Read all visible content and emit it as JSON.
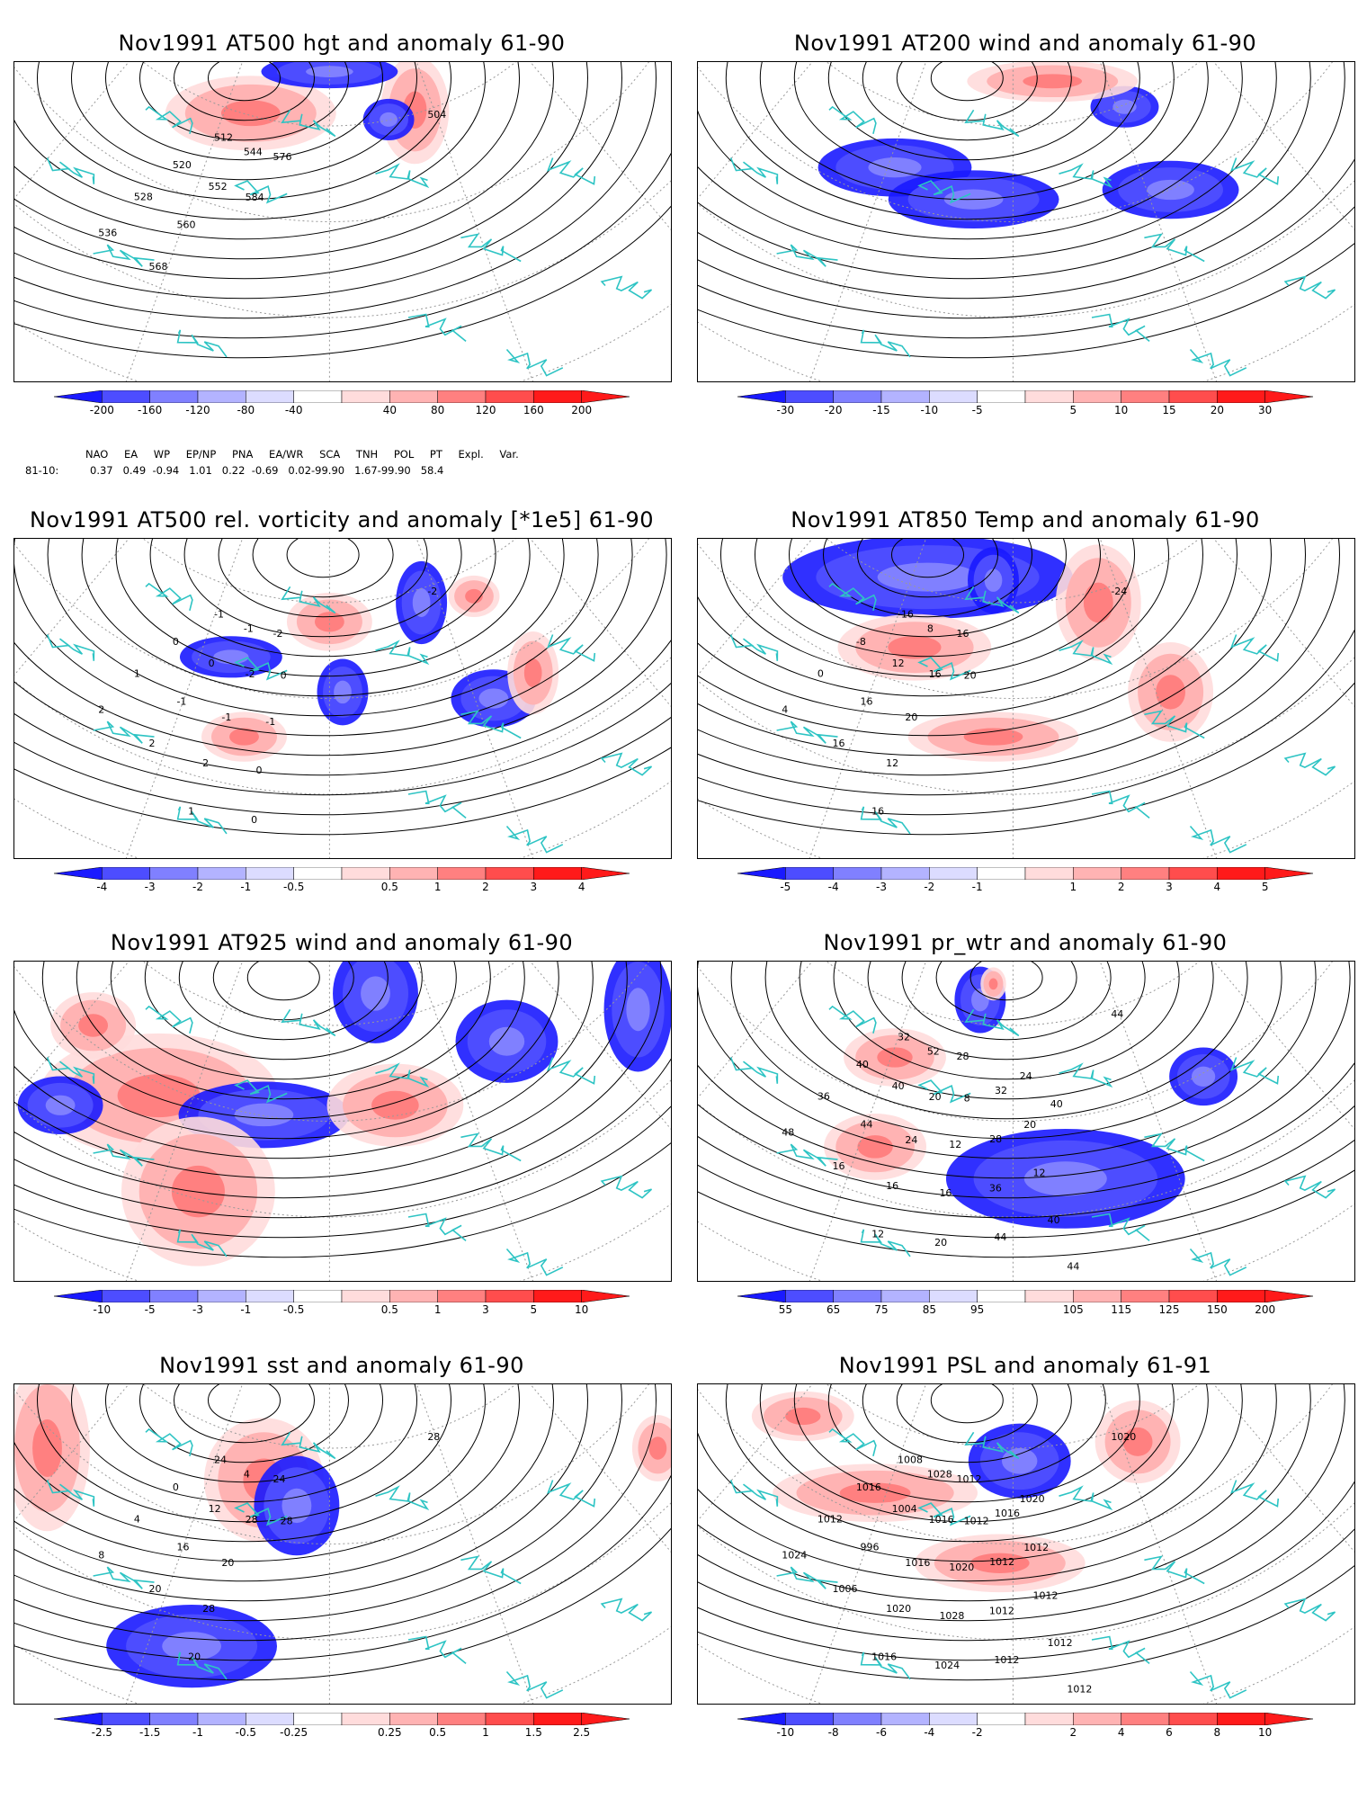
{
  "colors": {
    "coast": "#2ec4c4",
    "contour": "#000000",
    "grid": "#999999",
    "anom_neg": [
      "#1a1aff",
      "#4d4dff",
      "#8080ff",
      "#b3b3ff",
      "#dcdcff"
    ],
    "anom_pos": [
      "#ffdcdc",
      "#ffb3b3",
      "#ff8080",
      "#ff4d4d",
      "#ff1a1a"
    ]
  },
  "panels": [
    {
      "id": "p1",
      "title": "Nov1991 AT500 hgt and anomaly 61-90",
      "colorbar": [
        "-200",
        "-160",
        "-120",
        "-80",
        "-40",
        "40",
        "80",
        "120",
        "160",
        "200"
      ],
      "contour_labels": [
        "504",
        "512",
        "520",
        "528",
        "536",
        "544",
        "552",
        "560",
        "568",
        "576",
        "584"
      ],
      "blobs": [
        [
          "r",
          0.36,
          0.16,
          0.1,
          0.09
        ],
        [
          "r",
          0.61,
          0.15,
          0.04,
          0.13
        ],
        [
          "b",
          0.57,
          0.18,
          0.03,
          0.05
        ],
        [
          "b",
          0.48,
          0.03,
          0.08,
          0.04
        ]
      ]
    },
    {
      "id": "p2",
      "title": "Nov1991 AT200 wind and anomaly 61-90",
      "colorbar": [
        "-30",
        "-20",
        "-15",
        "-10",
        "-5",
        "5",
        "10",
        "15",
        "20",
        "30"
      ],
      "contour_labels": [],
      "blobs": [
        [
          "b",
          0.3,
          0.33,
          0.09,
          0.07
        ],
        [
          "b",
          0.42,
          0.43,
          0.1,
          0.07
        ],
        [
          "b",
          0.72,
          0.4,
          0.08,
          0.07
        ],
        [
          "b",
          0.65,
          0.14,
          0.04,
          0.05
        ],
        [
          "r",
          0.54,
          0.06,
          0.1,
          0.05
        ]
      ]
    },
    {
      "id": "p3",
      "title": "Nov1991 AT500 rel. vorticity and anomaly [*1e5] 61-90",
      "colorbar": [
        "-4",
        "-3",
        "-2",
        "-1",
        "-0.5",
        "0.5",
        "1",
        "2",
        "3",
        "4"
      ],
      "contour_labels": [
        "-2",
        "-1",
        "0",
        "1",
        "2",
        "-1",
        "0",
        "-1",
        "2",
        "-2",
        "-2",
        "-1",
        "2",
        "1",
        "0",
        "-1",
        "0",
        "0"
      ],
      "blobs": [
        [
          "b",
          0.33,
          0.37,
          0.06,
          0.05
        ],
        [
          "r",
          0.48,
          0.26,
          0.05,
          0.07
        ],
        [
          "b",
          0.62,
          0.2,
          0.03,
          0.1
        ],
        [
          "r",
          0.7,
          0.18,
          0.03,
          0.05
        ],
        [
          "b",
          0.73,
          0.5,
          0.05,
          0.07
        ],
        [
          "r",
          0.35,
          0.62,
          0.05,
          0.06
        ],
        [
          "b",
          0.5,
          0.48,
          0.03,
          0.08
        ],
        [
          "r",
          0.79,
          0.42,
          0.03,
          0.1
        ]
      ]
    },
    {
      "id": "p4",
      "title": "Nov1991 AT850 Temp and anomaly 61-90",
      "colorbar": [
        "-5",
        "-4",
        "-3",
        "-2",
        "-1",
        "1",
        "2",
        "3",
        "4",
        "5"
      ],
      "contour_labels": [
        "-24",
        "-16",
        "-8",
        "0",
        "4",
        "8",
        "12",
        "16",
        "16",
        "16",
        "16",
        "20",
        "12",
        "16",
        "20"
      ],
      "blobs": [
        [
          "b",
          0.35,
          0.12,
          0.17,
          0.1
        ],
        [
          "r",
          0.33,
          0.34,
          0.09,
          0.08
        ],
        [
          "r",
          0.61,
          0.2,
          0.05,
          0.14
        ],
        [
          "r",
          0.72,
          0.48,
          0.05,
          0.12
        ],
        [
          "r",
          0.45,
          0.62,
          0.1,
          0.06
        ],
        [
          "b",
          0.45,
          0.13,
          0.03,
          0.08
        ]
      ]
    },
    {
      "id": "p5",
      "title": "Nov1991 AT925 wind and anomaly 61-90",
      "colorbar": [
        "-10",
        "-5",
        "-3",
        "-1",
        "-0.5",
        "0.5",
        "1",
        "3",
        "5",
        "10"
      ],
      "contour_labels": [],
      "blobs": [
        [
          "r",
          0.22,
          0.42,
          0.14,
          0.15
        ],
        [
          "b",
          0.38,
          0.48,
          0.1,
          0.08
        ],
        [
          "r",
          0.28,
          0.72,
          0.09,
          0.18
        ],
        [
          "b",
          0.55,
          0.1,
          0.05,
          0.12
        ],
        [
          "b",
          0.75,
          0.25,
          0.06,
          0.1
        ],
        [
          "r",
          0.58,
          0.45,
          0.08,
          0.1
        ],
        [
          "b",
          0.95,
          0.15,
          0.04,
          0.15
        ],
        [
          "r",
          0.12,
          0.2,
          0.05,
          0.08
        ],
        [
          "b",
          0.07,
          0.45,
          0.05,
          0.07
        ]
      ]
    },
    {
      "id": "p6",
      "title": "Nov1991 pr_wtr and anomaly 61-90",
      "colorbar": [
        "55",
        "65",
        "75",
        "85",
        "95",
        "105",
        "115",
        "125",
        "150",
        "200"
      ],
      "contour_labels": [
        "44",
        "32",
        "40",
        "36",
        "48",
        "52",
        "40",
        "44",
        "16",
        "28",
        "20",
        "24",
        "16",
        "12",
        "8",
        "12",
        "16",
        "20",
        "32",
        "28",
        "36",
        "44",
        "24",
        "20",
        "12",
        "40",
        "44",
        "40"
      ],
      "blobs": [
        [
          "b",
          0.56,
          0.68,
          0.14,
          0.12
        ],
        [
          "b",
          0.43,
          0.12,
          0.03,
          0.08
        ],
        [
          "r",
          0.45,
          0.07,
          0.015,
          0.04
        ],
        [
          "b",
          0.77,
          0.36,
          0.04,
          0.07
        ],
        [
          "r",
          0.3,
          0.3,
          0.06,
          0.07
        ],
        [
          "r",
          0.27,
          0.58,
          0.06,
          0.08
        ]
      ]
    },
    {
      "id": "p7",
      "title": "Nov1991 sst and anomaly 61-90",
      "colorbar": [
        "-2.5",
        "-1.5",
        "-1",
        "-0.5",
        "-0.25",
        "0.25",
        "0.5",
        "1",
        "1.5",
        "2.5"
      ],
      "contour_labels": [
        "28",
        "24",
        "0",
        "4",
        "8",
        "4",
        "12",
        "16",
        "20",
        "24",
        "28",
        "20",
        "28",
        "20",
        "28"
      ],
      "blobs": [
        [
          "r",
          0.05,
          0.2,
          0.05,
          0.2
        ],
        [
          "b",
          0.27,
          0.82,
          0.1,
          0.1
        ],
        [
          "r",
          0.38,
          0.3,
          0.07,
          0.15
        ],
        [
          "b",
          0.43,
          0.38,
          0.05,
          0.12
        ],
        [
          "r",
          0.98,
          0.2,
          0.03,
          0.08
        ]
      ]
    },
    {
      "id": "p8",
      "title": "Nov1991 PSL and anomaly 61-91",
      "colorbar": [
        "-10",
        "-8",
        "-6",
        "-4",
        "-2",
        "2",
        "4",
        "6",
        "8",
        "10"
      ],
      "contour_labels": [
        "1020",
        "1008",
        "1016",
        "1012",
        "1024",
        "1028",
        "1004",
        "996",
        "1006",
        "1012",
        "1016",
        "1016",
        "1020",
        "1016",
        "1012",
        "1020",
        "1028",
        "1024",
        "1016",
        "1012",
        "1012",
        "1012",
        "1020",
        "1012",
        "1012",
        "1012",
        "1012"
      ],
      "blobs": [
        [
          "b",
          0.49,
          0.24,
          0.06,
          0.09
        ],
        [
          "r",
          0.67,
          0.18,
          0.05,
          0.1
        ],
        [
          "r",
          0.27,
          0.34,
          0.12,
          0.07
        ],
        [
          "r",
          0.46,
          0.56,
          0.1,
          0.07
        ],
        [
          "r",
          0.16,
          0.1,
          0.06,
          0.06
        ]
      ]
    }
  ],
  "indices": {
    "names": [
      "NAO",
      "EA",
      "WP",
      "EP/NP",
      "PNA",
      "EA/WR",
      "SCA",
      "TNH",
      "POL",
      "PT",
      "Expl. Var."
    ],
    "row_label": "81-10:",
    "values": "0.37   0.49  -0.94   1.01   0.22  -0.69   0.02-99.90   1.67-99.90   58.4"
  }
}
